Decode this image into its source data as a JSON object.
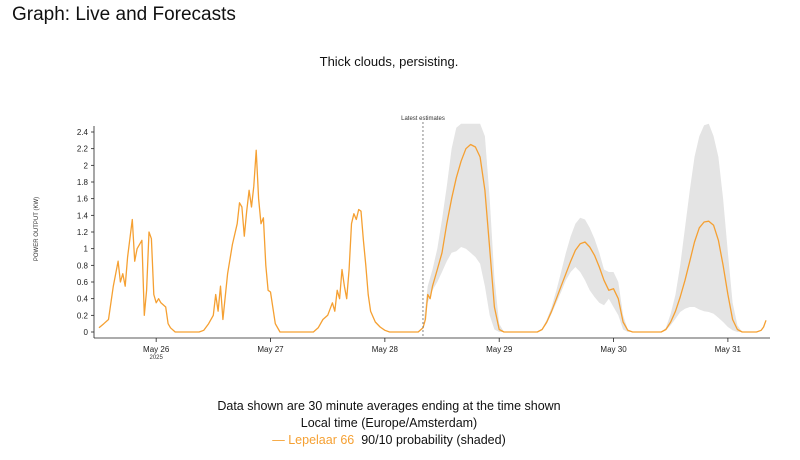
{
  "header": {
    "title": "Graph: Live and Forecasts"
  },
  "chart_data": {
    "type": "line",
    "title": "Thick clouds, persisting.",
    "ylabel": "POWER OUTPUT (KW)",
    "xlabel": "",
    "ylim": [
      0,
      2.4
    ],
    "yticks": [
      "0",
      "0.2",
      "0.4",
      "0.6",
      "0.8",
      "1",
      "1.2",
      "1.4",
      "1.6",
      "1.8",
      "2",
      "2.2",
      "2.4"
    ],
    "xlim": [
      "2025-05-25T12:00",
      "2025-05-31T08:00"
    ],
    "xticks": [
      {
        "label": "May 26",
        "sub": "2025",
        "t": "2025-05-26T00:00"
      },
      {
        "label": "May 27",
        "sub": "",
        "t": "2025-05-27T00:00"
      },
      {
        "label": "May 28",
        "sub": "",
        "t": "2025-05-28T00:00"
      },
      {
        "label": "May 29",
        "sub": "",
        "t": "2025-05-29T00:00"
      },
      {
        "label": "May 30",
        "sub": "",
        "t": "2025-05-30T00:00"
      },
      {
        "label": "May 31",
        "sub": "",
        "t": "2025-05-31T00:00"
      }
    ],
    "annotation": {
      "label": "Latest estimates",
      "t": "2025-05-28T08:00"
    },
    "series": [
      {
        "name": "Lepelaar 66",
        "color": "#f5a032",
        "points": [
          [
            "2025-05-25T12:00",
            0.05
          ],
          [
            "2025-05-25T13:00",
            0.1
          ],
          [
            "2025-05-25T14:00",
            0.15
          ],
          [
            "2025-05-25T15:00",
            0.55
          ],
          [
            "2025-05-25T16:00",
            0.85
          ],
          [
            "2025-05-25T16:30",
            0.6
          ],
          [
            "2025-05-25T17:00",
            0.7
          ],
          [
            "2025-05-25T17:30",
            0.55
          ],
          [
            "2025-05-25T18:00",
            0.9
          ],
          [
            "2025-05-25T19:00",
            1.35
          ],
          [
            "2025-05-25T19:30",
            0.85
          ],
          [
            "2025-05-25T20:00",
            1.0
          ],
          [
            "2025-05-25T21:00",
            1.1
          ],
          [
            "2025-05-25T21:30",
            0.2
          ],
          [
            "2025-05-25T22:00",
            0.5
          ],
          [
            "2025-05-25T22:30",
            1.2
          ],
          [
            "2025-05-25T23:00",
            1.12
          ],
          [
            "2025-05-25T23:30",
            0.45
          ],
          [
            "2025-05-26T00:00",
            0.35
          ],
          [
            "2025-05-26T00:30",
            0.4
          ],
          [
            "2025-05-26T01:00",
            0.35
          ],
          [
            "2025-05-26T02:00",
            0.3
          ],
          [
            "2025-05-26T02:30",
            0.1
          ],
          [
            "2025-05-26T03:00",
            0.05
          ],
          [
            "2025-05-26T04:00",
            0.0
          ],
          [
            "2025-05-26T09:00",
            0.0
          ],
          [
            "2025-05-26T10:00",
            0.02
          ],
          [
            "2025-05-26T11:00",
            0.1
          ],
          [
            "2025-05-26T12:00",
            0.2
          ],
          [
            "2025-05-26T12:30",
            0.45
          ],
          [
            "2025-05-26T13:00",
            0.25
          ],
          [
            "2025-05-26T13:30",
            0.55
          ],
          [
            "2025-05-26T14:00",
            0.15
          ],
          [
            "2025-05-26T15:00",
            0.7
          ],
          [
            "2025-05-26T16:00",
            1.05
          ],
          [
            "2025-05-26T17:00",
            1.3
          ],
          [
            "2025-05-26T17:30",
            1.55
          ],
          [
            "2025-05-26T18:00",
            1.5
          ],
          [
            "2025-05-26T18:30",
            1.15
          ],
          [
            "2025-05-26T19:00",
            1.45
          ],
          [
            "2025-05-26T19:30",
            1.7
          ],
          [
            "2025-05-26T20:00",
            1.5
          ],
          [
            "2025-05-26T20:30",
            1.75
          ],
          [
            "2025-05-26T21:00",
            2.18
          ],
          [
            "2025-05-26T21:30",
            1.6
          ],
          [
            "2025-05-26T22:00",
            1.3
          ],
          [
            "2025-05-26T22:30",
            1.37
          ],
          [
            "2025-05-26T23:00",
            0.8
          ],
          [
            "2025-05-26T23:30",
            0.5
          ],
          [
            "2025-05-27T00:00",
            0.48
          ],
          [
            "2025-05-27T01:00",
            0.1
          ],
          [
            "2025-05-27T02:00",
            0.0
          ],
          [
            "2025-05-27T09:00",
            0.0
          ],
          [
            "2025-05-27T10:00",
            0.05
          ],
          [
            "2025-05-27T11:00",
            0.15
          ],
          [
            "2025-05-27T12:00",
            0.2
          ],
          [
            "2025-05-27T13:00",
            0.35
          ],
          [
            "2025-05-27T13:30",
            0.25
          ],
          [
            "2025-05-27T14:00",
            0.5
          ],
          [
            "2025-05-27T14:30",
            0.4
          ],
          [
            "2025-05-27T15:00",
            0.75
          ],
          [
            "2025-05-27T15:30",
            0.55
          ],
          [
            "2025-05-27T16:00",
            0.4
          ],
          [
            "2025-05-27T16:30",
            0.75
          ],
          [
            "2025-05-27T17:00",
            1.3
          ],
          [
            "2025-05-27T17:30",
            1.42
          ],
          [
            "2025-05-27T18:00",
            1.35
          ],
          [
            "2025-05-27T18:30",
            1.47
          ],
          [
            "2025-05-27T19:00",
            1.45
          ],
          [
            "2025-05-27T19:30",
            1.1
          ],
          [
            "2025-05-27T20:00",
            0.8
          ],
          [
            "2025-05-27T20:30",
            0.45
          ],
          [
            "2025-05-27T21:00",
            0.25
          ],
          [
            "2025-05-27T22:00",
            0.12
          ],
          [
            "2025-05-27T23:00",
            0.06
          ],
          [
            "2025-05-28T00:00",
            0.02
          ],
          [
            "2025-05-28T01:00",
            0.0
          ],
          [
            "2025-05-28T07:00",
            0.0
          ],
          [
            "2025-05-28T08:00",
            0.05
          ],
          [
            "2025-05-28T08:30",
            0.15
          ],
          [
            "2025-05-28T09:00",
            0.45
          ],
          [
            "2025-05-28T09:30",
            0.4
          ],
          [
            "2025-05-28T10:00",
            0.55
          ],
          [
            "2025-05-28T11:00",
            0.75
          ],
          [
            "2025-05-28T12:00",
            0.95
          ],
          [
            "2025-05-28T13:00",
            1.3
          ],
          [
            "2025-05-28T14:00",
            1.6
          ],
          [
            "2025-05-28T15:00",
            1.85
          ],
          [
            "2025-05-28T16:00",
            2.05
          ],
          [
            "2025-05-28T17:00",
            2.2
          ],
          [
            "2025-05-28T18:00",
            2.25
          ],
          [
            "2025-05-28T19:00",
            2.22
          ],
          [
            "2025-05-28T20:00",
            2.1
          ],
          [
            "2025-05-28T21:00",
            1.7
          ],
          [
            "2025-05-28T22:00",
            1.0
          ],
          [
            "2025-05-28T23:00",
            0.3
          ],
          [
            "2025-05-29T00:00",
            0.03
          ],
          [
            "2025-05-29T01:00",
            0.0
          ],
          [
            "2025-05-29T08:00",
            0.0
          ],
          [
            "2025-05-29T09:00",
            0.03
          ],
          [
            "2025-05-29T10:00",
            0.12
          ],
          [
            "2025-05-29T11:00",
            0.25
          ],
          [
            "2025-05-29T12:00",
            0.4
          ],
          [
            "2025-05-29T13:00",
            0.55
          ],
          [
            "2025-05-29T14:00",
            0.7
          ],
          [
            "2025-05-29T15:00",
            0.85
          ],
          [
            "2025-05-29T16:00",
            0.98
          ],
          [
            "2025-05-29T17:00",
            1.06
          ],
          [
            "2025-05-29T18:00",
            1.08
          ],
          [
            "2025-05-29T19:00",
            1.02
          ],
          [
            "2025-05-29T20:00",
            0.92
          ],
          [
            "2025-05-29T21:00",
            0.78
          ],
          [
            "2025-05-29T22:00",
            0.62
          ],
          [
            "2025-05-29T23:00",
            0.5
          ],
          [
            "2025-05-30T00:00",
            0.52
          ],
          [
            "2025-05-30T01:00",
            0.4
          ],
          [
            "2025-05-30T02:00",
            0.12
          ],
          [
            "2025-05-30T03:00",
            0.02
          ],
          [
            "2025-05-30T04:00",
            0.0
          ],
          [
            "2025-05-30T10:00",
            0.0
          ],
          [
            "2025-05-30T11:00",
            0.03
          ],
          [
            "2025-05-30T12:00",
            0.12
          ],
          [
            "2025-05-30T13:00",
            0.25
          ],
          [
            "2025-05-30T14:00",
            0.42
          ],
          [
            "2025-05-30T15:00",
            0.62
          ],
          [
            "2025-05-30T16:00",
            0.85
          ],
          [
            "2025-05-30T17:00",
            1.08
          ],
          [
            "2025-05-30T18:00",
            1.25
          ],
          [
            "2025-05-30T19:00",
            1.32
          ],
          [
            "2025-05-30T20:00",
            1.33
          ],
          [
            "2025-05-30T21:00",
            1.28
          ],
          [
            "2025-05-30T22:00",
            1.1
          ],
          [
            "2025-05-30T23:00",
            0.8
          ],
          [
            "2025-05-31T00:00",
            0.45
          ],
          [
            "2025-05-31T01:00",
            0.15
          ],
          [
            "2025-05-31T02:00",
            0.03
          ],
          [
            "2025-05-31T03:00",
            0.0
          ],
          [
            "2025-05-31T06:00",
            0.0
          ],
          [
            "2025-05-31T07:00",
            0.02
          ],
          [
            "2025-05-31T07:30",
            0.06
          ],
          [
            "2025-05-31T08:00",
            0.14
          ]
        ]
      }
    ],
    "band": {
      "label": "90/10 probability (shaded)",
      "color": "#e4e4e4",
      "points": [
        [
          "2025-05-28T08:00",
          0.05,
          0.05
        ],
        [
          "2025-05-28T09:00",
          0.35,
          0.55
        ],
        [
          "2025-05-28T10:00",
          0.5,
          0.75
        ],
        [
          "2025-05-28T11:00",
          0.6,
          1.0
        ],
        [
          "2025-05-28T12:00",
          0.72,
          1.35
        ],
        [
          "2025-05-28T13:00",
          0.85,
          1.75
        ],
        [
          "2025-05-28T14:00",
          0.95,
          2.2
        ],
        [
          "2025-05-28T15:00",
          0.97,
          2.45
        ],
        [
          "2025-05-28T16:00",
          1.02,
          2.5
        ],
        [
          "2025-05-28T17:00",
          1.0,
          2.5
        ],
        [
          "2025-05-28T18:00",
          0.95,
          2.5
        ],
        [
          "2025-05-28T19:00",
          0.9,
          2.5
        ],
        [
          "2025-05-28T20:00",
          0.82,
          2.5
        ],
        [
          "2025-05-28T21:00",
          0.55,
          2.35
        ],
        [
          "2025-05-28T22:00",
          0.2,
          1.6
        ],
        [
          "2025-05-28T23:00",
          0.03,
          0.65
        ],
        [
          "2025-05-29T00:00",
          0.0,
          0.1
        ],
        [
          "2025-05-29T01:00",
          0.0,
          0.0
        ],
        [
          "2025-05-29T08:00",
          0.0,
          0.0
        ],
        [
          "2025-05-29T09:00",
          0.02,
          0.04
        ],
        [
          "2025-05-29T10:00",
          0.1,
          0.15
        ],
        [
          "2025-05-29T11:00",
          0.22,
          0.3
        ],
        [
          "2025-05-29T12:00",
          0.35,
          0.5
        ],
        [
          "2025-05-29T13:00",
          0.48,
          0.72
        ],
        [
          "2025-05-29T14:00",
          0.62,
          0.95
        ],
        [
          "2025-05-29T15:00",
          0.72,
          1.15
        ],
        [
          "2025-05-29T16:00",
          0.78,
          1.3
        ],
        [
          "2025-05-29T17:00",
          0.72,
          1.37
        ],
        [
          "2025-05-29T18:00",
          0.62,
          1.35
        ],
        [
          "2025-05-29T19:00",
          0.5,
          1.25
        ],
        [
          "2025-05-29T20:00",
          0.42,
          1.12
        ],
        [
          "2025-05-29T21:00",
          0.35,
          0.95
        ],
        [
          "2025-05-29T22:00",
          0.32,
          0.75
        ],
        [
          "2025-05-29T23:00",
          0.4,
          0.72
        ],
        [
          "2025-05-30T00:00",
          0.3,
          0.72
        ],
        [
          "2025-05-30T01:00",
          0.2,
          0.6
        ],
        [
          "2025-05-30T02:00",
          0.03,
          0.2
        ],
        [
          "2025-05-30T03:00",
          0.0,
          0.03
        ],
        [
          "2025-05-30T04:00",
          0.0,
          0.0
        ],
        [
          "2025-05-30T10:00",
          0.0,
          0.0
        ],
        [
          "2025-05-30T11:00",
          0.02,
          0.05
        ],
        [
          "2025-05-30T12:00",
          0.08,
          0.22
        ],
        [
          "2025-05-30T13:00",
          0.16,
          0.45
        ],
        [
          "2025-05-30T14:00",
          0.24,
          0.8
        ],
        [
          "2025-05-30T15:00",
          0.28,
          1.25
        ],
        [
          "2025-05-30T16:00",
          0.3,
          1.7
        ],
        [
          "2025-05-30T17:00",
          0.3,
          2.1
        ],
        [
          "2025-05-30T18:00",
          0.27,
          2.35
        ],
        [
          "2025-05-30T19:00",
          0.25,
          2.48
        ],
        [
          "2025-05-30T20:00",
          0.24,
          2.5
        ],
        [
          "2025-05-30T21:00",
          0.22,
          2.35
        ],
        [
          "2025-05-30T22:00",
          0.17,
          2.1
        ],
        [
          "2025-05-30T23:00",
          0.12,
          1.6
        ],
        [
          "2025-05-31T00:00",
          0.06,
          0.95
        ],
        [
          "2025-05-31T01:00",
          0.02,
          0.35
        ],
        [
          "2025-05-31T02:00",
          0.0,
          0.08
        ],
        [
          "2025-05-31T03:00",
          0.0,
          0.0
        ]
      ]
    }
  },
  "footer": {
    "line1": "Data shown are 30 minute averages ending at the time shown",
    "line2": "Local time (Europe/Amsterdam)",
    "legend_series": "— Lepelaar 66",
    "legend_band": "90/10 probability (shaded)"
  }
}
